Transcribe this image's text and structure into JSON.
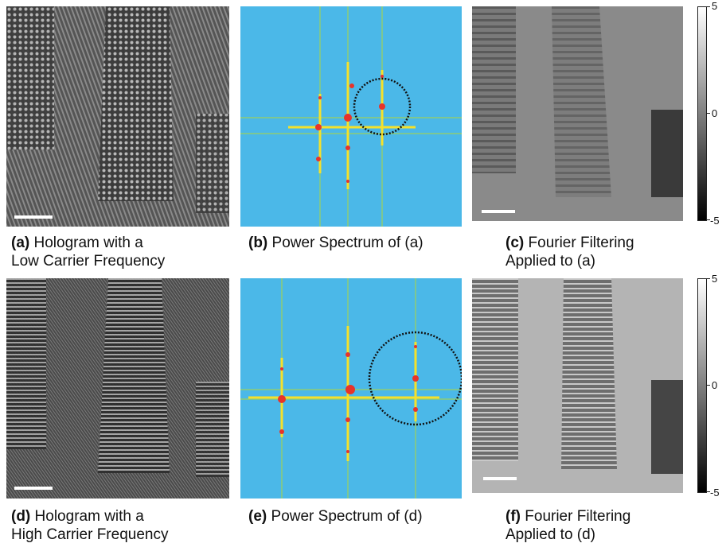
{
  "panels": [
    {
      "label": "(a)",
      "line1": "Hologram with a",
      "line2": "Low Carrier Frequency"
    },
    {
      "label": "(b)",
      "line1": "Power Spectrum of (a)",
      "line2": ""
    },
    {
      "label": "(c)",
      "line1": "Fourier Filtering",
      "line2": "Applied to (a)"
    },
    {
      "label": "(d)",
      "line1": "Hologram with a",
      "line2": "High Carrier Frequency"
    },
    {
      "label": "(e)",
      "line1": "Power Spectrum of (d)",
      "line2": ""
    },
    {
      "label": "(f)",
      "line1": "Fourier Filtering",
      "line2": "Applied to (d)"
    }
  ],
  "colorbar": {
    "top_label": "5",
    "mid_label": "0",
    "bottom_label": "-5"
  },
  "colors": {
    "spectrum_background": "#4bb8e8",
    "spectrum_peak": "#e8332a",
    "spectrum_streak": "#f5e12a",
    "circle": "#111111"
  }
}
